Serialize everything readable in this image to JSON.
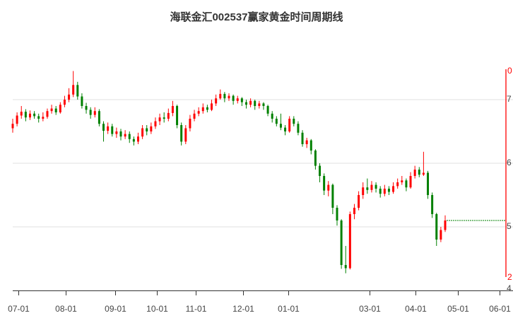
{
  "chart_data": {
    "type": "candlestick",
    "title": "海联金汇002537赢家黄金时间周期线",
    "ylim": [
      4,
      7.5
    ],
    "y_ticks": [
      "7",
      "6",
      "5",
      "4"
    ],
    "right_axis_labels": {
      "top": "0",
      "bottom": "2"
    },
    "x_ticks": [
      {
        "label": "07-01",
        "at": 1.3
      },
      {
        "label": "08-01",
        "at": 12.3
      },
      {
        "label": "09-01",
        "at": 23.7
      },
      {
        "label": "10-01",
        "at": 33.3
      },
      {
        "label": "11-01",
        "at": 42.3
      },
      {
        "label": "12-01",
        "at": 53.3
      },
      {
        "label": "01-01",
        "at": 63.7
      },
      {
        "label": "03-01",
        "at": 82.5
      },
      {
        "label": "04-01",
        "at": 93.1
      },
      {
        "label": "05-01",
        "at": 103
      },
      {
        "label": "06-01",
        "at": 112.6
      }
    ],
    "grid": true,
    "last_close_line": 5.1,
    "colors": {
      "up": "#ff0000",
      "down": "#008000",
      "grid": "#e0e0e0",
      "marker_line": "#ff0000"
    },
    "candles_ocHL": [
      [
        6.55,
        6.62,
        6.7,
        6.48
      ],
      [
        6.62,
        6.75,
        6.8,
        6.58
      ],
      [
        6.75,
        6.81,
        6.9,
        6.7
      ],
      [
        6.81,
        6.72,
        6.85,
        6.66
      ],
      [
        6.72,
        6.78,
        6.83,
        6.68
      ],
      [
        6.78,
        6.74,
        6.82,
        6.7
      ],
      [
        6.74,
        6.7,
        6.78,
        6.64
      ],
      [
        6.7,
        6.73,
        6.8,
        6.66
      ],
      [
        6.73,
        6.82,
        6.86,
        6.7
      ],
      [
        6.82,
        6.86,
        6.92,
        6.78
      ],
      [
        6.86,
        6.8,
        6.9,
        6.76
      ],
      [
        6.8,
        6.92,
        6.96,
        6.78
      ],
      [
        6.92,
        7.0,
        7.06,
        6.88
      ],
      [
        7.0,
        7.08,
        7.18,
        6.96
      ],
      [
        7.08,
        7.23,
        7.45,
        7.04
      ],
      [
        7.23,
        7.05,
        7.28,
        7.0
      ],
      [
        7.05,
        6.9,
        7.1,
        6.86
      ],
      [
        6.9,
        6.84,
        6.95,
        6.78
      ],
      [
        6.84,
        6.76,
        6.88,
        6.7
      ],
      [
        6.76,
        6.82,
        6.88,
        6.72
      ],
      [
        6.82,
        6.62,
        6.85,
        6.58
      ],
      [
        6.62,
        6.51,
        6.66,
        6.34
      ],
      [
        6.51,
        6.58,
        6.64,
        6.46
      ],
      [
        6.58,
        6.46,
        6.62,
        6.42
      ],
      [
        6.46,
        6.5,
        6.56,
        6.4
      ],
      [
        6.5,
        6.42,
        6.54,
        6.36
      ],
      [
        6.42,
        6.46,
        6.52,
        6.38
      ],
      [
        6.46,
        6.38,
        6.5,
        6.32
      ],
      [
        6.38,
        6.34,
        6.42,
        6.28
      ],
      [
        6.34,
        6.42,
        6.48,
        6.3
      ],
      [
        6.42,
        6.55,
        6.6,
        6.38
      ],
      [
        6.55,
        6.5,
        6.6,
        6.44
      ],
      [
        6.5,
        6.58,
        6.64,
        6.46
      ],
      [
        6.58,
        6.66,
        6.72,
        6.54
      ],
      [
        6.66,
        6.72,
        6.78,
        6.6
      ],
      [
        6.72,
        6.7,
        6.8,
        6.64
      ],
      [
        6.7,
        6.79,
        6.86,
        6.66
      ],
      [
        6.79,
        6.9,
        6.98,
        6.74
      ],
      [
        6.9,
        6.6,
        6.92,
        6.55
      ],
      [
        6.6,
        6.34,
        6.64,
        6.28
      ],
      [
        6.34,
        6.55,
        6.6,
        6.3
      ],
      [
        6.55,
        6.7,
        6.76,
        6.5
      ],
      [
        6.7,
        6.78,
        6.84,
        6.66
      ],
      [
        6.78,
        6.82,
        6.88,
        6.74
      ],
      [
        6.82,
        6.88,
        6.94,
        6.78
      ],
      [
        6.88,
        6.84,
        6.92,
        6.8
      ],
      [
        6.84,
        6.94,
        7.0,
        6.82
      ],
      [
        6.94,
        7.02,
        7.08,
        6.9
      ],
      [
        7.02,
        7.09,
        7.16,
        7.0
      ],
      [
        7.09,
        7.02,
        7.12,
        6.96
      ],
      [
        7.02,
        7.06,
        7.1,
        6.98
      ],
      [
        7.06,
        6.98,
        7.08,
        6.92
      ],
      [
        6.98,
        7.02,
        7.06,
        6.94
      ],
      [
        7.02,
        6.96,
        7.04,
        6.9
      ],
      [
        6.96,
        6.92,
        7.0,
        6.86
      ],
      [
        6.92,
        6.98,
        7.02,
        6.88
      ],
      [
        6.98,
        6.9,
        7.0,
        6.84
      ],
      [
        6.9,
        6.94,
        6.98,
        6.86
      ],
      [
        6.94,
        6.9,
        6.96,
        6.84
      ],
      [
        6.9,
        6.78,
        6.92,
        6.74
      ],
      [
        6.78,
        6.7,
        6.82,
        6.64
      ],
      [
        6.7,
        6.62,
        6.74,
        6.58
      ],
      [
        6.62,
        6.56,
        6.78,
        6.52
      ],
      [
        6.56,
        6.5,
        6.6,
        6.44
      ],
      [
        6.5,
        6.7,
        6.74,
        6.48
      ],
      [
        6.7,
        6.62,
        6.74,
        6.58
      ],
      [
        6.62,
        6.48,
        6.66,
        6.44
      ],
      [
        6.48,
        6.3,
        6.52,
        6.26
      ],
      [
        6.3,
        6.36,
        6.4,
        6.24
      ],
      [
        6.36,
        6.2,
        6.38,
        6.14
      ],
      [
        6.2,
        5.96,
        6.22,
        5.9
      ],
      [
        5.96,
        5.8,
        6.0,
        5.7
      ],
      [
        5.8,
        5.57,
        5.84,
        5.5
      ],
      [
        5.57,
        5.66,
        5.72,
        5.48
      ],
      [
        5.66,
        5.3,
        5.68,
        5.2
      ],
      [
        5.3,
        5.1,
        5.34,
        5.02
      ],
      [
        5.1,
        4.4,
        5.12,
        4.34
      ],
      [
        4.4,
        4.35,
        4.7,
        4.27
      ],
      [
        4.35,
        5.2,
        5.24,
        4.33
      ],
      [
        5.2,
        5.3,
        5.36,
        5.12
      ],
      [
        5.3,
        5.5,
        5.56,
        5.26
      ],
      [
        5.5,
        5.62,
        5.7,
        5.44
      ],
      [
        5.62,
        5.58,
        5.76,
        5.52
      ],
      [
        5.58,
        5.66,
        5.72,
        5.54
      ],
      [
        5.66,
        5.6,
        5.7,
        5.54
      ],
      [
        5.6,
        5.52,
        5.64,
        5.46
      ],
      [
        5.52,
        5.6,
        5.66,
        5.48
      ],
      [
        5.6,
        5.55,
        5.64,
        5.5
      ],
      [
        5.55,
        5.64,
        5.7,
        5.52
      ],
      [
        5.64,
        5.7,
        5.76,
        5.6
      ],
      [
        5.7,
        5.73,
        5.8,
        5.66
      ],
      [
        5.73,
        5.62,
        5.76,
        5.56
      ],
      [
        5.62,
        5.8,
        5.86,
        5.6
      ],
      [
        5.8,
        5.9,
        5.96,
        5.76
      ],
      [
        5.9,
        5.82,
        5.94,
        5.78
      ],
      [
        5.82,
        5.85,
        6.18,
        5.8
      ],
      [
        5.85,
        5.5,
        5.88,
        5.44
      ],
      [
        5.5,
        5.2,
        5.54,
        5.14
      ],
      [
        5.2,
        4.8,
        5.22,
        4.7
      ],
      [
        4.8,
        4.95,
        5.0,
        4.76
      ],
      [
        4.95,
        5.1,
        5.18,
        4.92
      ]
    ]
  }
}
